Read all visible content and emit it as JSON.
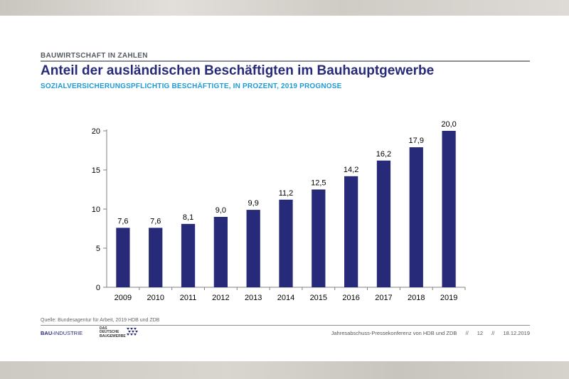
{
  "header": {
    "eyebrow": "BAUWIRTSCHAFT IN ZAHLEN",
    "title": "Anteil der ausländischen Beschäftigten im Bauhauptgewerbe",
    "subtitle": "SOZIALVERSICHERUNGSPFLICHTIG BESCHÄFTIGTE, IN PROZENT, 2019 PROGNOSE"
  },
  "chart_data": {
    "type": "bar",
    "categories": [
      "2009",
      "2010",
      "2011",
      "2012",
      "2013",
      "2014",
      "2015",
      "2016",
      "2017",
      "2018",
      "2019"
    ],
    "values": [
      7.6,
      7.6,
      8.1,
      9.0,
      9.9,
      11.2,
      12.5,
      14.2,
      16.2,
      17.9,
      20.0
    ],
    "value_labels": [
      "7,6",
      "7,6",
      "8,1",
      "9,0",
      "9,9",
      "11,2",
      "12,5",
      "14,2",
      "16,2",
      "17,9",
      "20,0"
    ],
    "yticks": [
      0,
      5,
      10,
      15,
      20
    ],
    "ylim": [
      0,
      20
    ],
    "bar_color": "#262a78",
    "grid": false,
    "legend": "none"
  },
  "footer": {
    "source": "Quelle: Bundesagentur für Arbeit, 2019 HDB und ZDB",
    "logo_bau_bold": "BAU",
    "logo_bau_rest": "INDUSTRIE",
    "logo_zdb_line1": "DAS DEUTSCHE",
    "logo_zdb_line2": "BAUGEWERBE",
    "event": "Jahresabschuss-Pressekonferenz von HDB und ZDB",
    "separator": "//",
    "page": "12",
    "date": "18.12.2019"
  }
}
